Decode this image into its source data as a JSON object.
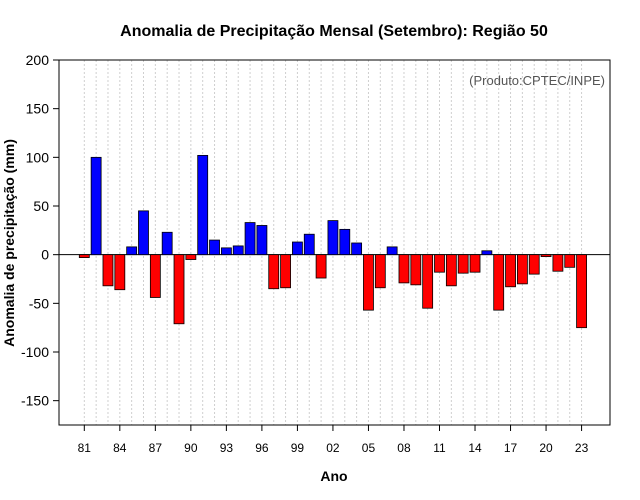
{
  "chart_data": {
    "type": "bar",
    "title": "Anomalia de Precipitação Mensal (Setembro): Região 50",
    "xlabel": "Ano",
    "ylabel": "Anomalia de precipitação (mm)",
    "annotation": "(Produto:CPTEC/INPE)",
    "ylim": [
      -175,
      200
    ],
    "yticks": [
      -150,
      -100,
      -50,
      0,
      50,
      100,
      150,
      200
    ],
    "xtick_labels": [
      "81",
      "84",
      "87",
      "90",
      "93",
      "96",
      "99",
      "02",
      "05",
      "08",
      "11",
      "14",
      "17",
      "20",
      "23"
    ],
    "grid": "vertical dotted",
    "categories": [
      "1981",
      "1982",
      "1983",
      "1984",
      "1985",
      "1986",
      "1987",
      "1988",
      "1989",
      "1990",
      "1991",
      "1992",
      "1993",
      "1994",
      "1995",
      "1996",
      "1997",
      "1998",
      "1999",
      "2000",
      "2001",
      "2002",
      "2003",
      "2004",
      "2005",
      "2006",
      "2007",
      "2008",
      "2009",
      "2010",
      "2011",
      "2012",
      "2013",
      "2014",
      "2015",
      "2016",
      "2017",
      "2018",
      "2019",
      "2020",
      "2021",
      "2022",
      "2023"
    ],
    "values": [
      -3,
      100,
      -32,
      -36,
      8,
      45,
      -44,
      23,
      -71,
      -5,
      102,
      15,
      7,
      9,
      33,
      30,
      -35,
      -34,
      13,
      21,
      -24,
      35,
      26,
      12,
      -57,
      -34,
      8,
      -29,
      -31,
      -55,
      -18,
      -32,
      -19,
      -18,
      4,
      -57,
      -33,
      -30,
      -20,
      -2,
      -17,
      -13,
      -75
    ],
    "colors": {
      "positive": "#0000ff",
      "negative": "#ff0000",
      "zero_line": "#000000",
      "grid": "#cfcfcf"
    }
  }
}
